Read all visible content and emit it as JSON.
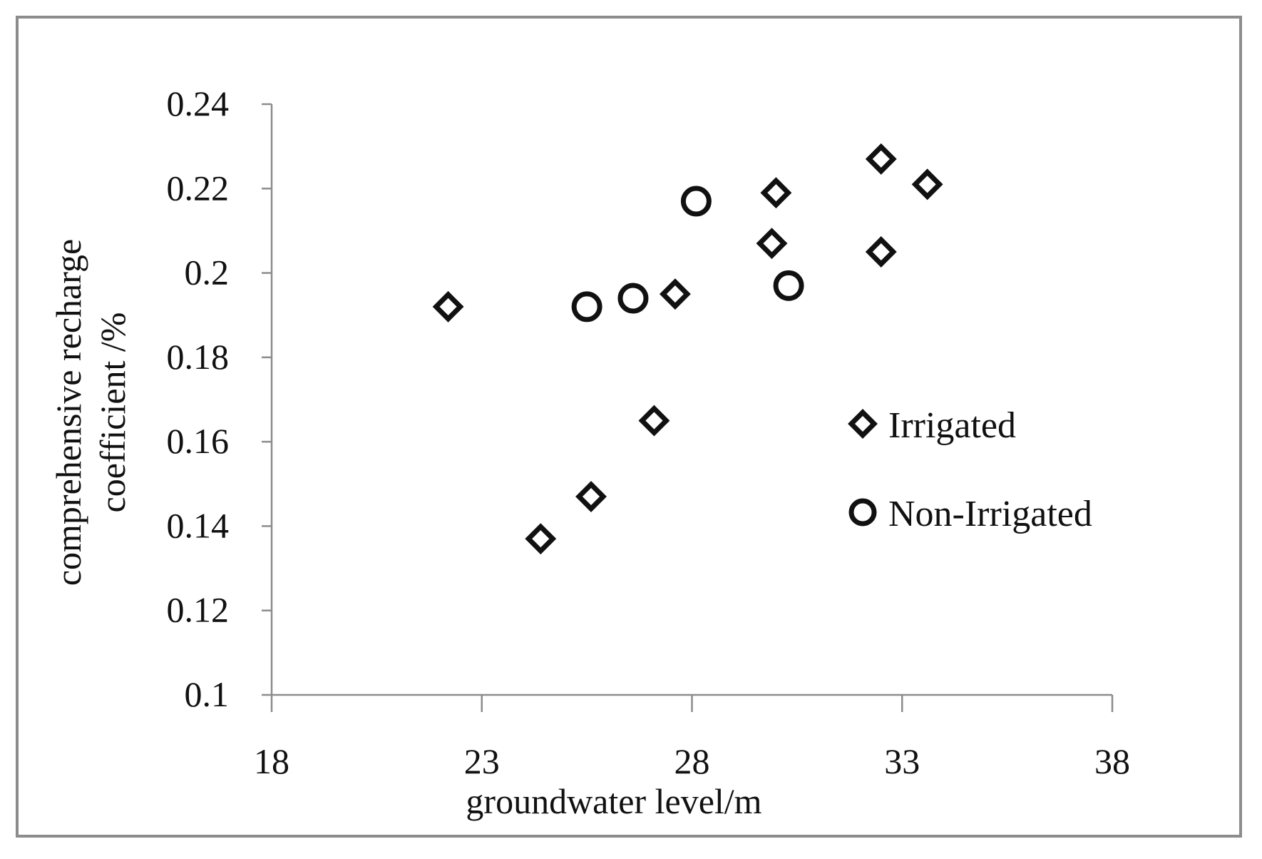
{
  "chart_data": {
    "type": "scatter",
    "title": "",
    "xlabel": "groundwater level/m",
    "ylabel_lines": [
      "comprehensive recharge",
      "coefficient /%"
    ],
    "xlim": [
      18,
      38
    ],
    "ylim": [
      0.1,
      0.24
    ],
    "x_ticks": [
      18,
      23,
      28,
      33,
      38
    ],
    "x_tick_labels": [
      "18",
      "23",
      "28",
      "33",
      "38"
    ],
    "y_ticks": [
      0.1,
      0.12,
      0.14,
      0.16,
      0.18,
      0.2,
      0.22,
      0.24
    ],
    "y_tick_labels": [
      "0.1",
      "0.12",
      "0.14",
      "0.16",
      "0.18",
      "0.2",
      "0.22",
      "0.24"
    ],
    "grid": false,
    "legend_position": "right",
    "series": [
      {
        "name": "Irrigated",
        "marker": "diamond",
        "points": [
          {
            "x": 22.2,
            "y": 0.192
          },
          {
            "x": 24.4,
            "y": 0.137
          },
          {
            "x": 25.6,
            "y": 0.147
          },
          {
            "x": 27.1,
            "y": 0.165
          },
          {
            "x": 27.6,
            "y": 0.195
          },
          {
            "x": 29.9,
            "y": 0.207
          },
          {
            "x": 30.0,
            "y": 0.219
          },
          {
            "x": 32.5,
            "y": 0.205
          },
          {
            "x": 32.5,
            "y": 0.227
          },
          {
            "x": 33.6,
            "y": 0.221
          }
        ]
      },
      {
        "name": "Non-Irrigated",
        "marker": "circle",
        "points": [
          {
            "x": 25.5,
            "y": 0.192
          },
          {
            "x": 26.6,
            "y": 0.194
          },
          {
            "x": 28.1,
            "y": 0.217
          },
          {
            "x": 30.3,
            "y": 0.197
          }
        ]
      }
    ]
  }
}
